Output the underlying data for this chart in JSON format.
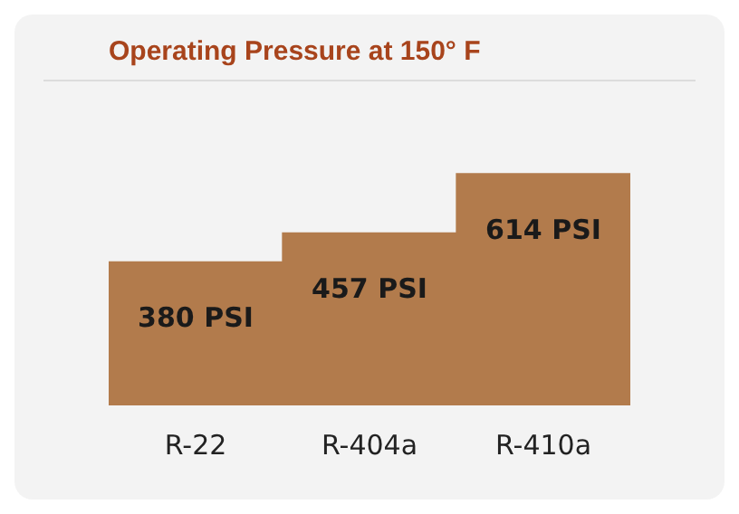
{
  "chart_data": {
    "type": "bar",
    "title": "Operating Pressure at 150° F",
    "categories": [
      "R-22",
      "R-404a",
      "R-410a"
    ],
    "values": [
      380,
      457,
      614
    ],
    "value_labels": [
      "380 PSI",
      "457 PSI",
      "614 PSI"
    ],
    "color": "#b27b4c",
    "tick_labels": "x",
    "grid": false,
    "legend": false
  }
}
